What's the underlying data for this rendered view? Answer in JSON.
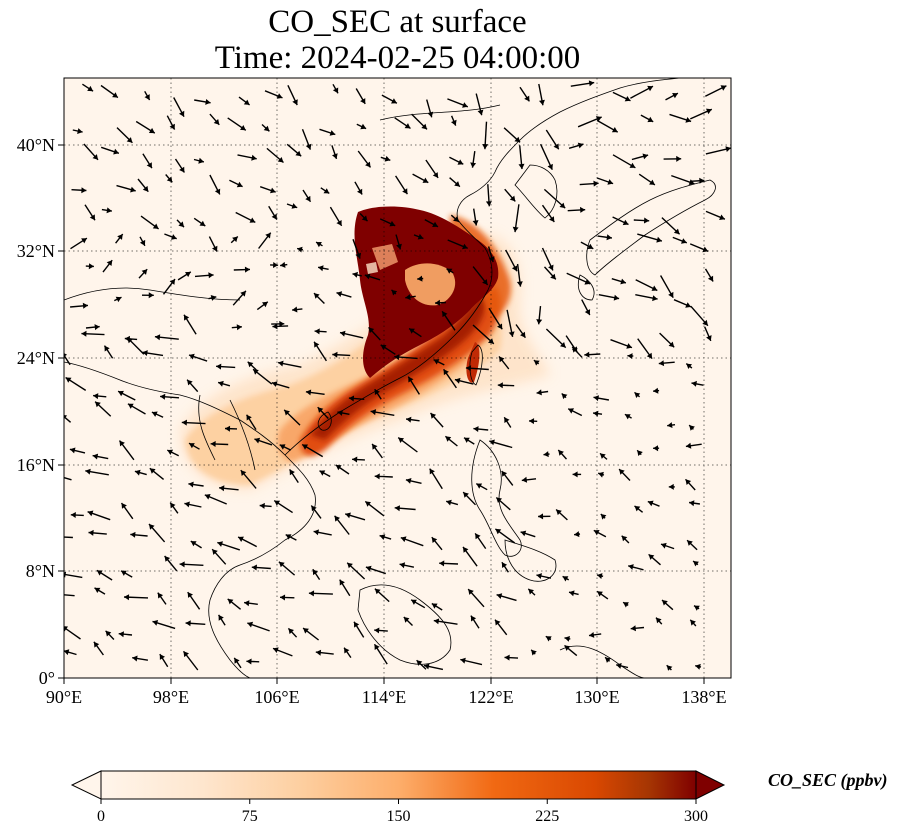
{
  "title": {
    "line1": "CO_SEC at surface",
    "line2": "Time: 2024-02-25 04:00:00"
  },
  "map": {
    "lon_range": [
      90,
      140
    ],
    "lat_range": [
      0,
      45
    ],
    "gridlines": "dotted",
    "x_ticks": [
      "90°E",
      "98°E",
      "106°E",
      "114°E",
      "122°E",
      "130°E",
      "138°E"
    ],
    "y_ticks": [
      "0°",
      "8°N",
      "16°N",
      "24°N",
      "32°N",
      "40°N"
    ],
    "background_color": "#fff5eb",
    "plume_colors": [
      "#fdd0a2",
      "#f16913",
      "#d94801",
      "#7f0000"
    ],
    "vector_color": "#000000"
  },
  "colorbar": {
    "label": "CO_SEC (ppbv)",
    "ticks": [
      "0",
      "75",
      "150",
      "225",
      "300"
    ],
    "colormap": [
      "#fff5eb",
      "#fdd0a2",
      "#fdae6b",
      "#f16913",
      "#d94801",
      "#a63603",
      "#7f0000"
    ],
    "extend": "both"
  }
}
